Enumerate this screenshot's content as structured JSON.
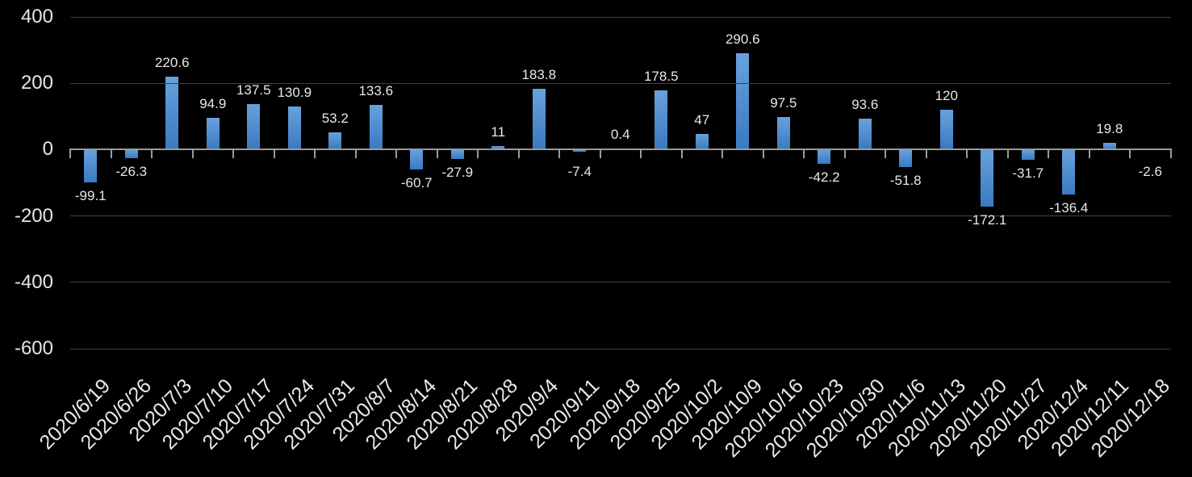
{
  "chart_data": {
    "type": "bar",
    "title": "",
    "xlabel": "",
    "ylabel": "",
    "legend": "none",
    "grid": "horizontal",
    "categories": [
      "2020/6/19",
      "2020/6/26",
      "2020/7/3",
      "2020/7/10",
      "2020/7/17",
      "2020/7/24",
      "2020/7/31",
      "2020/8/7",
      "2020/8/14",
      "2020/8/21",
      "2020/8/28",
      "2020/9/4",
      "2020/9/11",
      "2020/9/18",
      "2020/9/25",
      "2020/10/2",
      "2020/10/9",
      "2020/10/16",
      "2020/10/23",
      "2020/10/30",
      "2020/11/6",
      "2020/11/13",
      "2020/11/20",
      "2020/11/27",
      "2020/12/4",
      "2020/12/11",
      "2020/12/18"
    ],
    "values": [
      -99.1,
      -26.3,
      220.6,
      94.9,
      137.5,
      130.9,
      53.2,
      133.6,
      -60.7,
      -27.9,
      11,
      183.8,
      -7.4,
      0.4,
      178.5,
      47,
      290.6,
      97.5,
      -42.2,
      93.6,
      -51.8,
      120,
      -172.1,
      -31.7,
      -136.4,
      19.8,
      -2.6
    ],
    "labels": [
      "-99.1",
      "-26.3",
      "220.6",
      "94.9",
      "137.5",
      "130.9",
      "53.2",
      "133.6",
      "-60.7",
      "-27.9",
      "11",
      "183.8",
      "-7.4",
      "0.4",
      "178.5",
      "47",
      "290.6",
      "97.5",
      "-42.2",
      "93.6",
      "-51.8",
      "120",
      "-172.1",
      "-31.7",
      "-136.4",
      "19.8",
      "-2.6"
    ],
    "yticks": [
      400,
      200,
      0,
      -200,
      -400,
      -600
    ],
    "ytick_labels": [
      "400",
      "200",
      "0",
      "-200",
      "-400",
      "-600"
    ],
    "ylim": [
      -600,
      400
    ],
    "colors": {
      "background": "#000000",
      "bar_gradient_top": "#68a2dc",
      "bar_gradient_bottom": "#3a79c1",
      "gridline": "#404040",
      "axis": "#9b9b9b",
      "y_label_text": "#e3e6ea",
      "x_label_text": "#e6e9ed",
      "value_label_text": "#e6e8ea"
    }
  }
}
